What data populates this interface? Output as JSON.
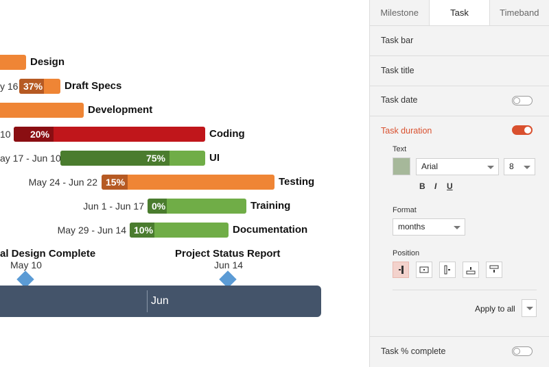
{
  "tasks": [
    {
      "title": "Design",
      "date": "",
      "percent": ""
    },
    {
      "title": "Draft Specs",
      "date": "y 16",
      "percent": "37%"
    },
    {
      "title": "Development",
      "date": "",
      "percent": ""
    },
    {
      "title": "Coding",
      "date": "10",
      "percent": "20%"
    },
    {
      "title": "UI",
      "date": "ay 17 - Jun 10",
      "percent": "75%"
    },
    {
      "title": "Testing",
      "date": "May 24 - Jun 22",
      "percent": "15%"
    },
    {
      "title": "Training",
      "date": "Jun 1 - Jun 17",
      "percent": "0%"
    },
    {
      "title": "Documentation",
      "date": "May 29 - Jun 14",
      "percent": "10%"
    }
  ],
  "milestones": [
    {
      "title": "al Design Complete",
      "date": "May 10"
    },
    {
      "title": "Project Status Report",
      "date": "Jun 14"
    }
  ],
  "timeband": {
    "label": "Jun"
  },
  "panel": {
    "tabs": [
      "Milestone",
      "Task",
      "Timeband"
    ],
    "sections": {
      "task_bar": "Task bar",
      "task_title": "Task title",
      "task_date": "Task date",
      "task_duration": "Task duration",
      "task_percent": "Task % complete"
    },
    "text_label": "Text",
    "font": "Arial",
    "font_size": "8",
    "style_buttons": [
      "B",
      "I",
      "U"
    ],
    "format_label": "Format",
    "format_value": "months",
    "position_label": "Position",
    "apply_all": "Apply to all",
    "colors": {
      "accent": "#d9502e",
      "text_swatch": "#a6b89a",
      "orange": "#ef8535",
      "dark_orange": "#b65a23",
      "red": "#c0161b",
      "dark_red": "#8a0e12",
      "green": "#70ad47",
      "dark_green": "#4a7c2e",
      "timeband": "#44546a",
      "milestone": "#5b9bd5"
    },
    "states": {
      "task_date": "off",
      "task_duration": "on",
      "task_percent": "off"
    }
  }
}
